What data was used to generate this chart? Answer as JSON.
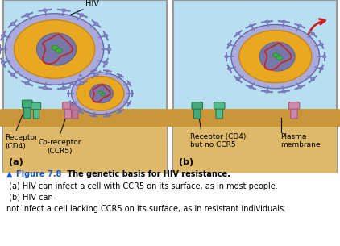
{
  "fig_width": 4.22,
  "fig_height": 3.05,
  "dpi": 100,
  "bg_color": "#b8dff0",
  "cell_color": "#deb96a",
  "cell_line_color": "#c9973a",
  "hiv_outer_color": "#aaaadd",
  "hiv_outer_edge": "#6666aa",
  "hiv_inner_color": "#e8a822",
  "hiv_inner_edge": "#c88810",
  "nucleus_color": "#7777aa",
  "nucleus_edge": "#555588",
  "rna_color": "#cc2222",
  "dot_color": "#44aa44",
  "dot_edge": "#228822",
  "spike_color": "#7777bb",
  "spike_circle_color": "#8888cc",
  "receptor_cd4_color": "#44aa77",
  "receptor_cd4_edge": "#227755",
  "receptor_cd4_color2": "#55bb88",
  "receptor_ccr5_color": "#cc88aa",
  "receptor_ccr5_edge": "#aa5577",
  "receptor_ccr5_color2": "#bb7799",
  "arrow_color": "#cc2222",
  "panel_border_color": "#999999",
  "label_color": "black",
  "caption_fig_color": "#1155cc",
  "label_hiv": "HIV",
  "label_receptor_a": "Receptor\n(CD4)",
  "label_coreceptor": "Co-receptor\n(CCR5)",
  "label_receptor_b": "Receptor (CD4)\nbut no CCR5",
  "label_plasma": "Plasma\nmembrane",
  "label_a": "(a)",
  "label_b": "(b)",
  "caption_fig": "Figure 7.8",
  "caption_bold": " The genetic basis for HIV resistance.",
  "caption_line1": " (a) HIV can infect a cell with CCR5 on its surface, as in most people.",
  "caption_line2a": " (b) HIV can-",
  "caption_line2b": "not infect a cell lacking CCR5 on its surface, as in resistant individuals."
}
